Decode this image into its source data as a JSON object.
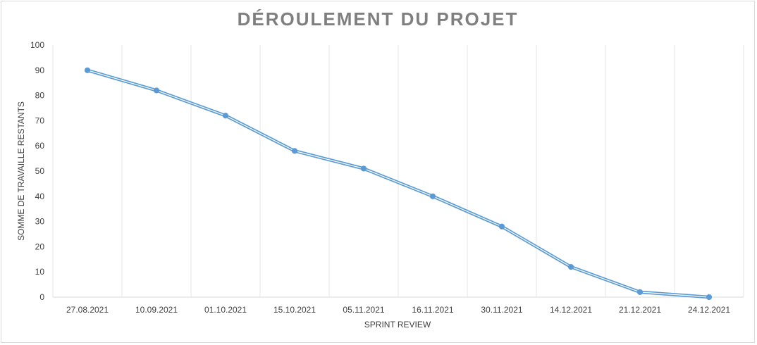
{
  "chart_data": {
    "type": "line",
    "title": "DÉROULEMENT DU PROJET",
    "xlabel": "SPRINT REVIEW",
    "ylabel": "SOMME DE TRAVAILLE RESTANTS",
    "categories": [
      "27.08.2021",
      "10.09.2021",
      "01.10.2021",
      "15.10.2021",
      "05.11.2021",
      "16.11.2021",
      "30.11.2021",
      "14.12.2021",
      "21.12.2021",
      "24.12.2021"
    ],
    "series": [
      {
        "values": [
          90,
          82,
          72,
          58,
          51,
          40,
          28,
          12,
          2,
          0
        ]
      }
    ],
    "ylim": [
      0,
      100
    ],
    "yticks": [
      0,
      10,
      20,
      30,
      40,
      50,
      60,
      70,
      80,
      90,
      100
    ],
    "grid": "vertical",
    "legend": "none",
    "colors": {
      "line": "#5b9bd5",
      "grid": "#e6e6e6",
      "axis": "#d9d9d9",
      "title": "#7f7f7f",
      "text": "#404040"
    }
  }
}
